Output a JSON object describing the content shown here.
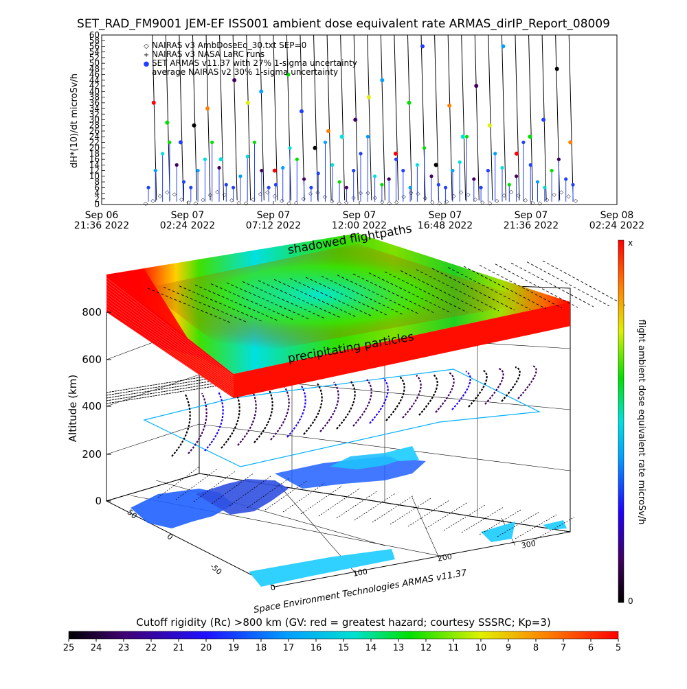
{
  "title": "SET_RAD_FM9001  JEM-EF ISS001 ambient dose equivalent rate ARMAS_dirIP_Report_08009",
  "chart_data": [
    {
      "type": "scatter",
      "ylabel": "dH*(10)/dt microSv/h",
      "ylim": [
        0,
        60
      ],
      "y_ticks": [
        "0",
        "2",
        "4",
        "6",
        "8",
        "10",
        "12",
        "14",
        "16",
        "18",
        "20",
        "22",
        "24",
        "26",
        "28",
        "30",
        "32",
        "34",
        "36",
        "38",
        "40",
        "42",
        "44",
        "46",
        "48",
        "50",
        "52",
        "54",
        "56",
        "58",
        "60"
      ],
      "x_ticks": [
        {
          "date": "Sep 06",
          "time": "21:36  2022"
        },
        {
          "date": "Sep 07",
          "time": "02:24  2022"
        },
        {
          "date": "Sep 07",
          "time": "07:12  2022"
        },
        {
          "date": "Sep 07",
          "time": "12:00  2022"
        },
        {
          "date": "Sep 07",
          "time": "16:48  2022"
        },
        {
          "date": "Sep 07",
          "time": "21:36  2022"
        },
        {
          "date": "Sep 08",
          "time": "02:24  2022"
        }
      ],
      "legend": [
        {
          "marker": "◇",
          "label": "NAIRAS v3 AmbDoseEq_30.txt SEP=0"
        },
        {
          "marker": "+",
          "label": "NAIRAS v3 NASA LaRC runs"
        },
        {
          "marker": "●",
          "label": "SET ARMAS v11.37 with 27% 1-sigma uncertainty"
        },
        {
          "marker": "",
          "label": "average NAIRAS v2 30% 1-sigma uncertainty"
        }
      ],
      "series": [
        {
          "name": "NAIRAS v3 AmbDoseEq_30.txt SEP=0",
          "values": [
            0.5,
            1.5,
            3.2,
            4.5,
            3.8,
            2.0,
            0.8,
            0.6,
            1.8,
            3.5,
            4.6,
            3.6,
            1.7,
            0.7,
            0.6,
            2.0,
            3.9,
            4.5,
            3.2,
            1.5,
            0.6,
            0.7,
            2.2,
            4.0,
            4.4,
            2.9,
            1.3,
            0.6,
            0.9,
            2.6,
            4.3,
            4.2,
            2.6,
            1.1,
            0.6,
            1.0,
            2.9,
            4.4,
            4.0,
            2.4,
            1.0,
            0.6,
            1.2,
            3.1,
            4.5,
            3.7,
            2.0,
            0.8,
            0.6,
            1.5,
            3.4,
            4.6,
            3.4,
            1.7,
            0.7,
            0.6,
            1.8,
            3.7,
            4.5,
            3.0,
            1.4
          ]
        },
        {
          "name": "SET ARMAS v11.37 with 27% 1-sigma uncertainty",
          "values": [
            6,
            12,
            18,
            22,
            14,
            8,
            6,
            12,
            16,
            22,
            13,
            7,
            6,
            10,
            17,
            22,
            12,
            6,
            7,
            13,
            20,
            16,
            9,
            6,
            11,
            22,
            14,
            8,
            6,
            12,
            18,
            24,
            10,
            7,
            9,
            16,
            12,
            6,
            14,
            20,
            10,
            7,
            6,
            12,
            15,
            24,
            9,
            6,
            12,
            18,
            13,
            7,
            10,
            22,
            14,
            8,
            6,
            12,
            16,
            9,
            7
          ]
        }
      ],
      "spikes": [
        36,
        29,
        22,
        28,
        34,
        16,
        44,
        36,
        40,
        12,
        46,
        33,
        20,
        26,
        24,
        30,
        38,
        44,
        18,
        36,
        56,
        14,
        35,
        24,
        42,
        28,
        56,
        18,
        24,
        30,
        48,
        22
      ]
    },
    {
      "type": "3d-scatter",
      "zlabel": "Altitude (km)",
      "z_ticks": [
        "0",
        "200",
        "400",
        "600",
        "800"
      ],
      "lat_ticks": [
        "-50",
        "0",
        "50"
      ],
      "lon_ticks": [
        "0",
        "100",
        "200",
        "300"
      ],
      "annotations": [
        "shadowed flightpaths",
        "precipitating particles"
      ],
      "colorbar": {
        "label": "flight ambient dose equivalent rate microSv/h",
        "max_label": "x",
        "min_label": "0"
      }
    },
    {
      "type": "colorbar",
      "title": "Cutoff rigidity (Rc) >800 km (GV: red = greatest hazard; courtesy SSSRC; Kp=3)",
      "ticks": [
        "25",
        "24",
        "23",
        "22",
        "21",
        "20",
        "19",
        "18",
        "17",
        "16",
        "15",
        "14",
        "13",
        "12",
        "11",
        "10",
        "9",
        "8",
        "7",
        "6",
        "5"
      ]
    }
  ],
  "credit": "Space Environment Technologies ARMAS v11.37",
  "colors": {
    "background": "#ffffff",
    "axis": "#000000",
    "land": "#2060ff",
    "ocean_pale": "#30d0ff",
    "hazard_red": "#ff0000"
  }
}
